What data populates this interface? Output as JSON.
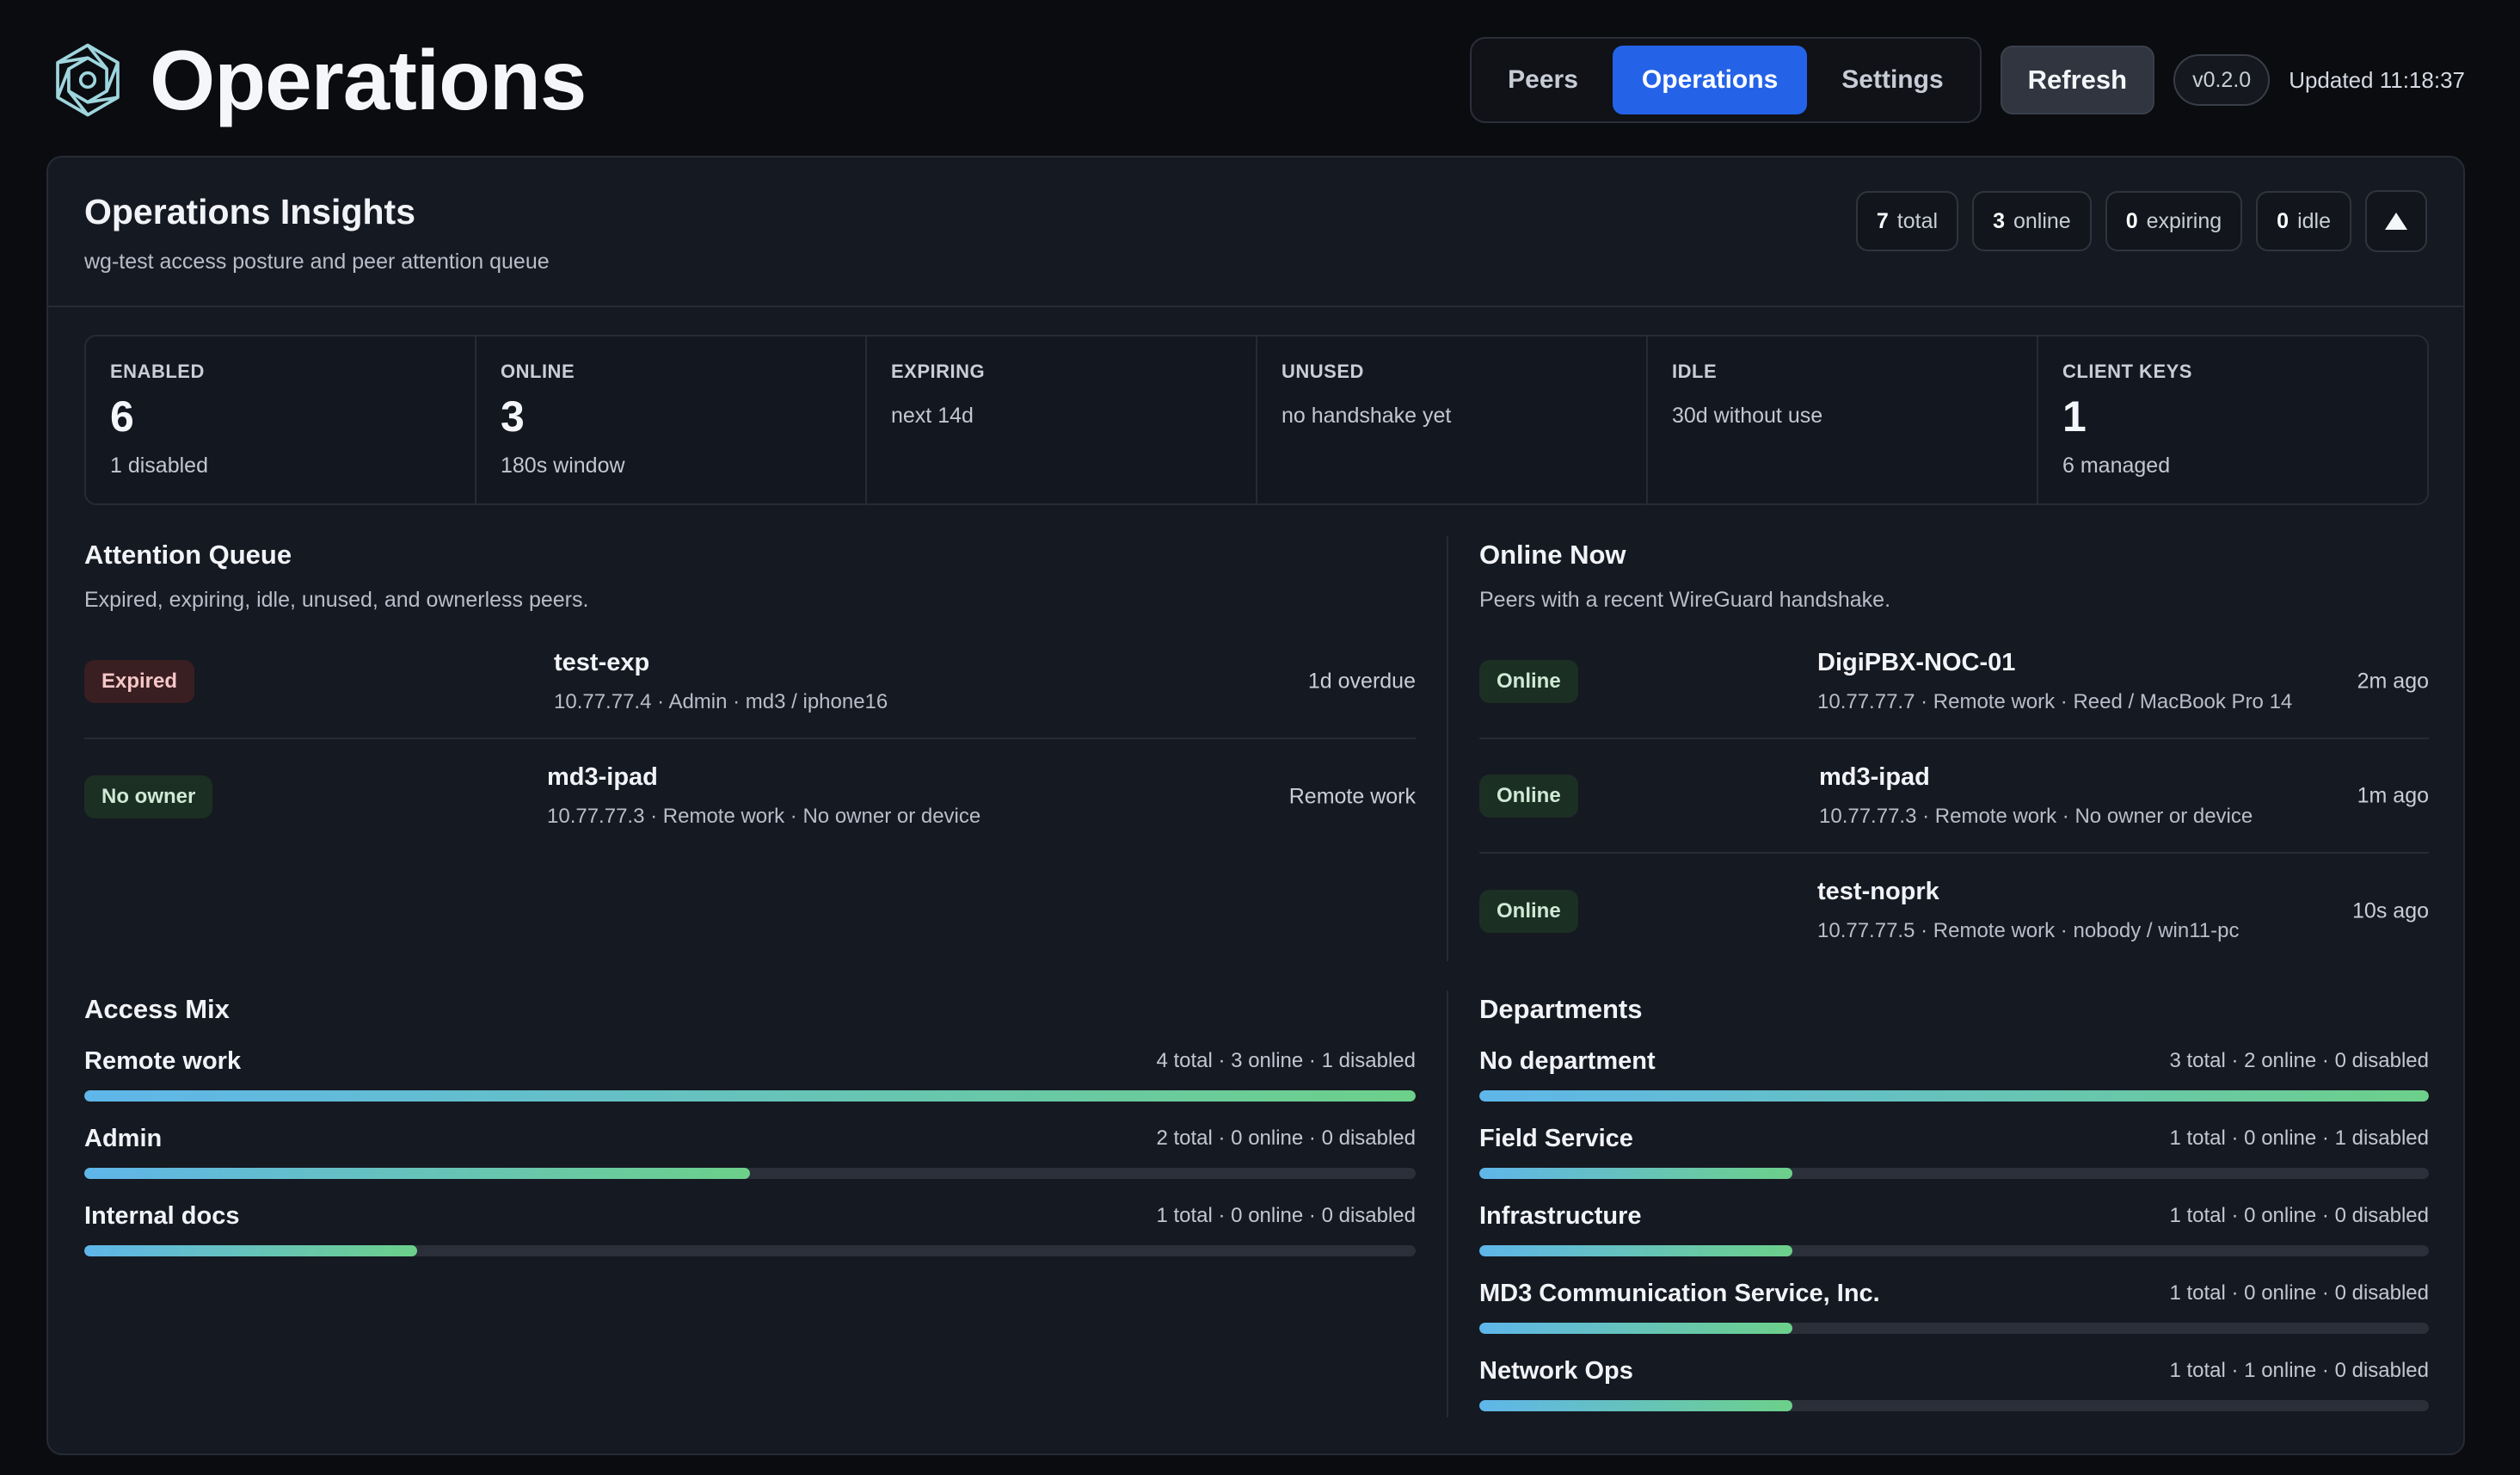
{
  "header": {
    "title": "Operations",
    "tabs": [
      {
        "label": "Peers",
        "active": false
      },
      {
        "label": "Operations",
        "active": true
      },
      {
        "label": "Settings",
        "active": false
      }
    ],
    "refresh_label": "Refresh",
    "version": "v0.2.0",
    "updated": "Updated 11:18:37"
  },
  "insights": {
    "title": "Operations Insights",
    "subtitle": "wg-test access posture and peer attention queue",
    "pills": [
      {
        "count": "7",
        "label": "total"
      },
      {
        "count": "3",
        "label": "online"
      },
      {
        "count": "0",
        "label": "expiring"
      },
      {
        "count": "0",
        "label": "idle"
      }
    ]
  },
  "stats": [
    {
      "label": "ENABLED",
      "value": "6",
      "hint": "1 disabled"
    },
    {
      "label": "ONLINE",
      "value": "3",
      "hint": "180s window"
    },
    {
      "label": "EXPIRING",
      "value": "",
      "hint": "next 14d"
    },
    {
      "label": "UNUSED",
      "value": "",
      "hint": "no handshake yet"
    },
    {
      "label": "IDLE",
      "value": "",
      "hint": "30d without use"
    },
    {
      "label": "CLIENT KEYS",
      "value": "1",
      "hint": "6 managed"
    }
  ],
  "attention": {
    "title": "Attention Queue",
    "subtitle": "Expired, expiring, idle, unused, and ownerless peers.",
    "items": [
      {
        "badge": "Expired",
        "name": "test-exp",
        "meta": "10.77.77.4 · Admin · md3 / iphone16",
        "right": "1d overdue"
      },
      {
        "badge": "No owner",
        "name": "md3-ipad",
        "meta": "10.77.77.3 · Remote work · No owner or device",
        "right": "Remote work"
      }
    ]
  },
  "online_now": {
    "title": "Online Now",
    "subtitle": "Peers with a recent WireGuard handshake.",
    "items": [
      {
        "badge": "Online",
        "name": "DigiPBX-NOC-01",
        "meta": "10.77.77.7 · Remote work · Reed / MacBook Pro 14",
        "right": "2m ago"
      },
      {
        "badge": "Online",
        "name": "md3-ipad",
        "meta": "10.77.77.3 · Remote work · No owner or device",
        "right": "1m ago"
      },
      {
        "badge": "Online",
        "name": "test-noprk",
        "meta": "10.77.77.5 · Remote work · nobody / win11-pc",
        "right": "10s ago"
      }
    ]
  },
  "access_mix": {
    "title": "Access Mix",
    "items": [
      {
        "name": "Remote work",
        "stats": "4 total · 3 online · 1 disabled",
        "fraction": 1.0
      },
      {
        "name": "Admin",
        "stats": "2 total · 0 online · 0 disabled",
        "fraction": 0.5
      },
      {
        "name": "Internal docs",
        "stats": "1 total · 0 online · 0 disabled",
        "fraction": 0.25
      }
    ]
  },
  "departments": {
    "title": "Departments",
    "items": [
      {
        "name": "No department",
        "stats": "3 total · 2 online · 0 disabled",
        "fraction": 1.0
      },
      {
        "name": "Field Service",
        "stats": "1 total · 0 online · 1 disabled",
        "fraction": 0.33
      },
      {
        "name": "Infrastructure",
        "stats": "1 total · 0 online · 0 disabled",
        "fraction": 0.33
      },
      {
        "name": "MD3 Communication Service, Inc.",
        "stats": "1 total · 0 online · 0 disabled",
        "fraction": 0.33
      },
      {
        "name": "Network Ops",
        "stats": "1 total · 1 online · 0 disabled",
        "fraction": 0.33
      }
    ]
  }
}
